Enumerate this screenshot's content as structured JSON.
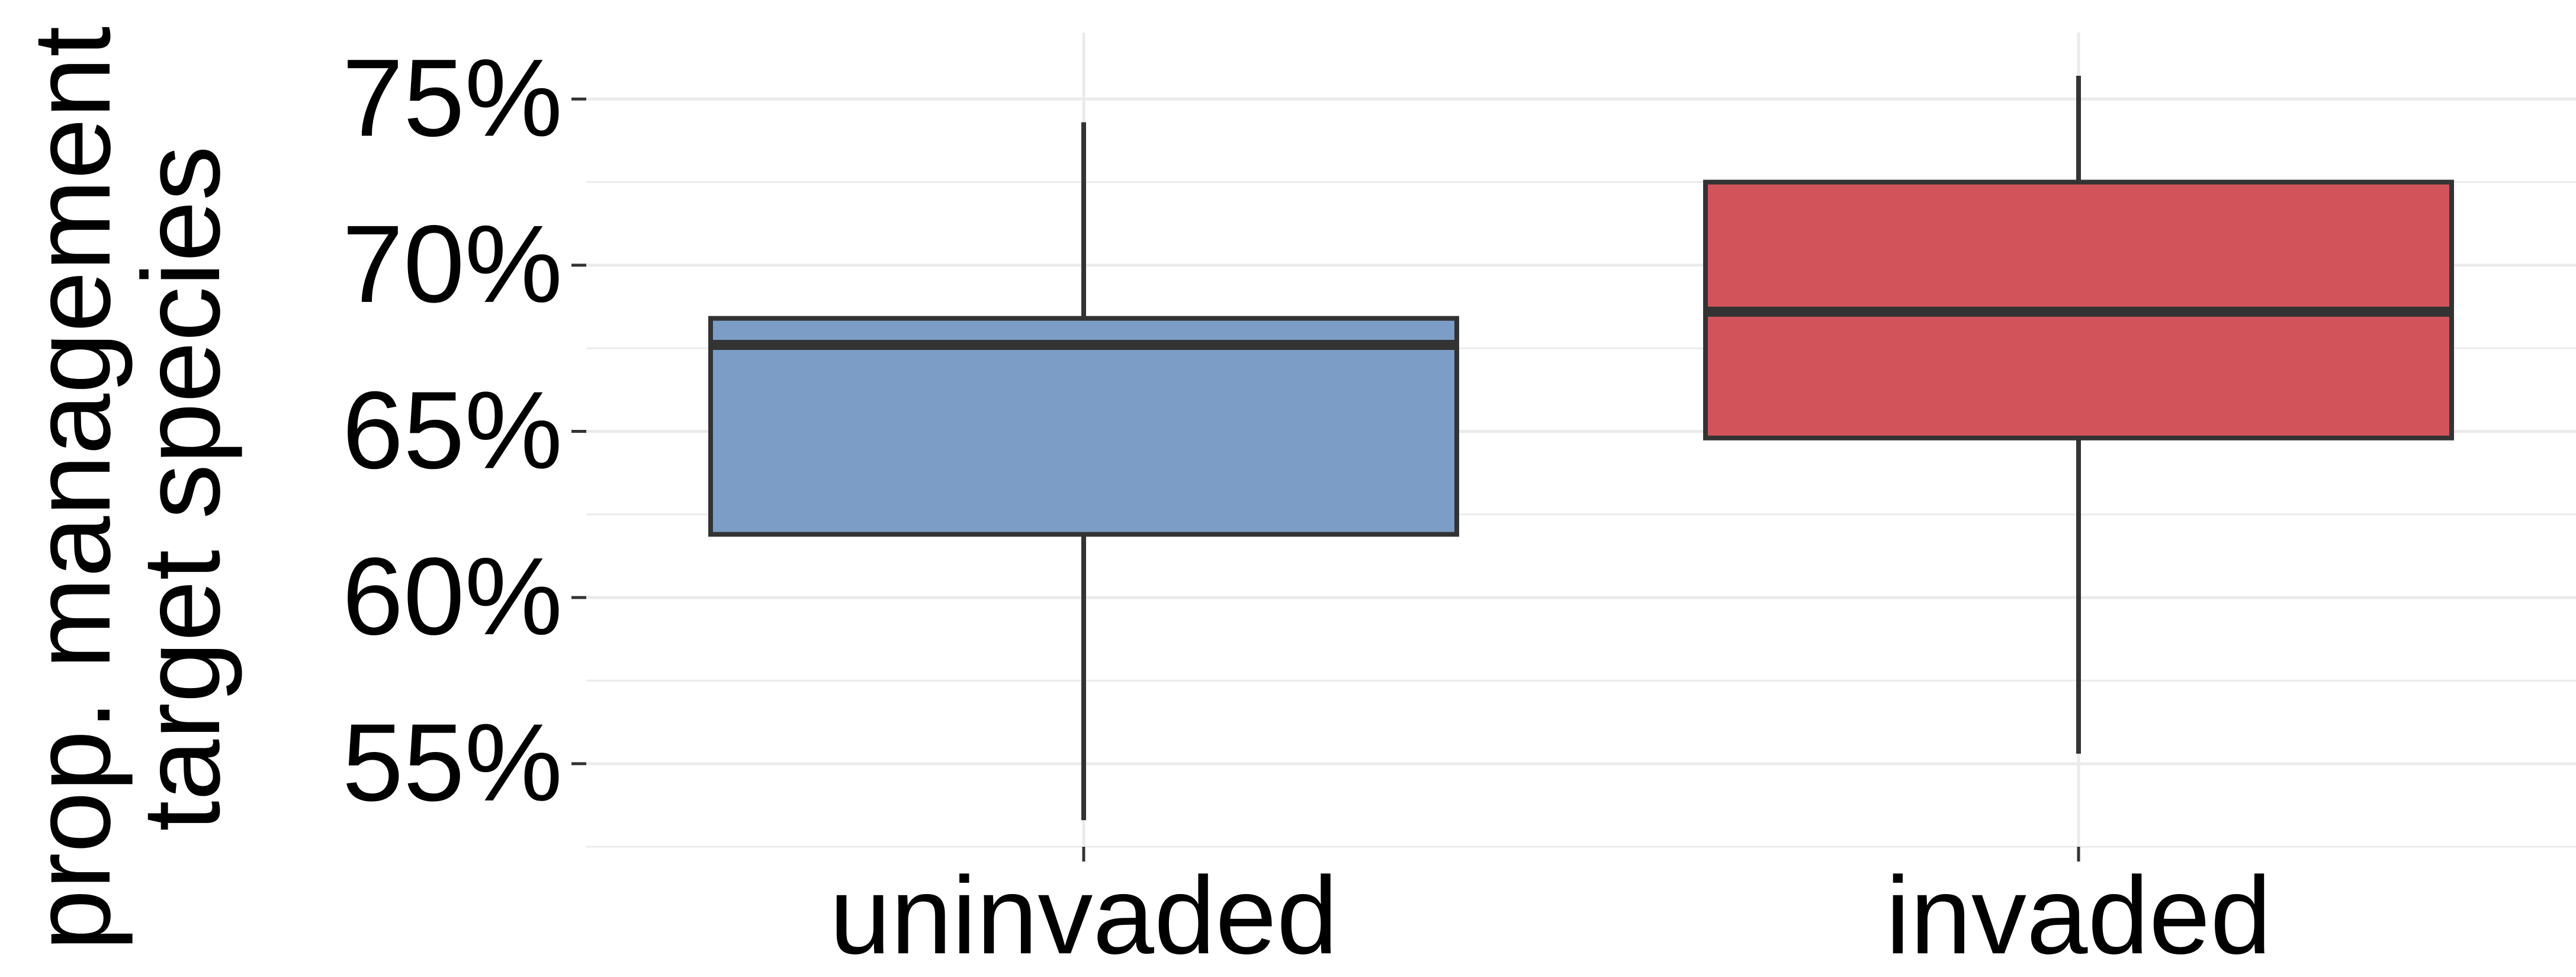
{
  "chart_data": {
    "type": "box",
    "title": "",
    "xlabel": "",
    "ylabel_lines": [
      "prop. management",
      "target species"
    ],
    "categories": [
      "uninvaded",
      "invaded"
    ],
    "y_tick_values": [
      55,
      60,
      65,
      70,
      75
    ],
    "y_tick_labels": [
      "55%",
      "60%",
      "65%",
      "70%",
      "75%"
    ],
    "ylim": [
      52.5,
      77
    ],
    "grid": true,
    "boxes": [
      {
        "category": "uninvaded",
        "whisker_low": 53.3,
        "q1": 61.9,
        "median": 67.6,
        "q3": 68.4,
        "whisker_high": 74.3,
        "color": "#7b9dc6"
      },
      {
        "category": "invaded",
        "whisker_low": 55.3,
        "q1": 64.8,
        "median": 68.6,
        "q3": 72.5,
        "whisker_high": 75.7,
        "color": "#d2545a"
      }
    ],
    "colors": {
      "stroke": "#333333",
      "grid": "#ebebeb"
    }
  }
}
